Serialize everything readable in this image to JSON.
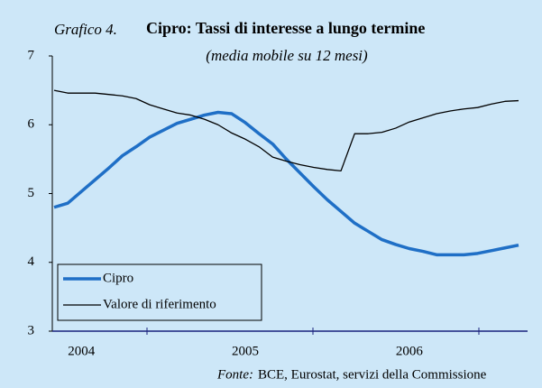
{
  "chart_data": {
    "type": "line",
    "title_prefix": "Grafico 4.",
    "title": "Cipro: Tassi di interesse a lungo termine",
    "subtitle": "(media mobile su 12 mesi)",
    "source_label": "Fonte:",
    "source": "BCE, Eurostat, servizi della Commissione",
    "categories": [
      null,
      null,
      "2004",
      null,
      null,
      null,
      null,
      null,
      null,
      null,
      null,
      null,
      null,
      null,
      "2005",
      null,
      null,
      null,
      null,
      null,
      null,
      null,
      null,
      null,
      null,
      null,
      "2006",
      null,
      null,
      null,
      null,
      null,
      null,
      null,
      null
    ],
    "series": [
      {
        "name": "Cipro",
        "color": "#1f6fc6",
        "values": [
          4.8,
          4.86,
          5.03,
          5.2,
          5.37,
          5.55,
          5.68,
          5.82,
          5.92,
          6.02,
          6.08,
          6.14,
          6.18,
          6.16,
          6.03,
          5.87,
          5.72,
          5.5,
          5.3,
          5.1,
          4.91,
          4.74,
          4.57,
          4.45,
          4.33,
          4.26,
          4.2,
          4.16,
          4.11,
          4.11,
          4.11,
          4.13,
          4.17,
          4.21,
          4.25
        ]
      },
      {
        "name": "Valore di riferimento",
        "color": "#000000",
        "values": [
          6.5,
          6.46,
          6.46,
          6.46,
          6.44,
          6.42,
          6.38,
          6.29,
          6.23,
          6.17,
          6.14,
          6.08,
          6.0,
          5.88,
          5.79,
          5.68,
          5.53,
          5.47,
          5.42,
          5.38,
          5.35,
          5.33,
          5.87,
          5.87,
          5.89,
          5.95,
          6.04,
          6.1,
          6.16,
          6.2,
          6.23,
          6.25,
          6.3,
          6.34,
          6.35
        ]
      }
    ],
    "ylim": [
      3,
      7
    ],
    "yticks": [
      3,
      4,
      5,
      6,
      7
    ],
    "legend": "lower left"
  }
}
